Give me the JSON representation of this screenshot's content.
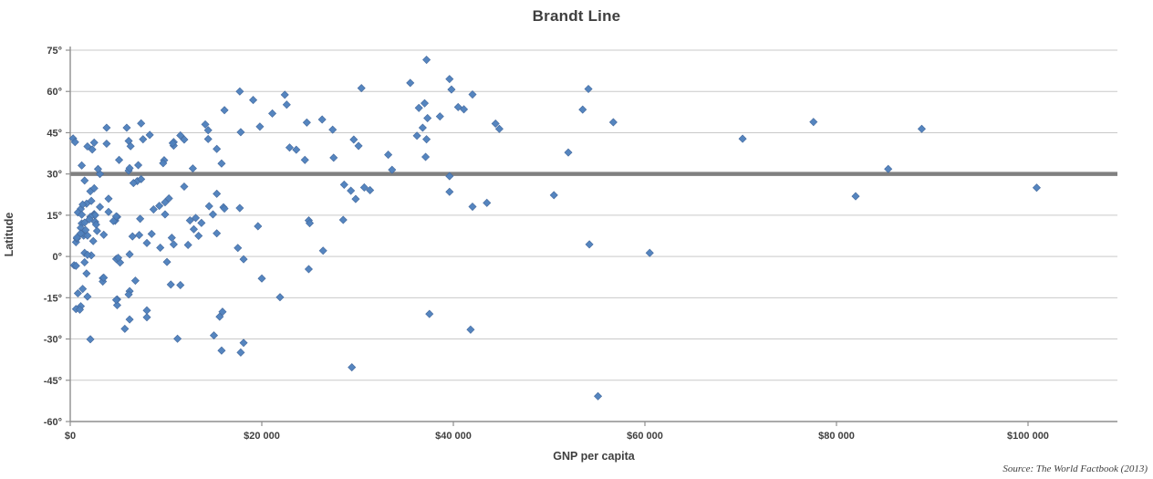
{
  "chart": {
    "title": "Brandt Line",
    "x_axis": {
      "label": "GNP per capita",
      "tick_labels": [
        "$0",
        "$20 000",
        "$40 000",
        "$60 000",
        "$80 000",
        "$100 000"
      ],
      "tick_values": [
        0,
        20000,
        40000,
        60000,
        80000,
        100000
      ]
    },
    "y_axis": {
      "label": "Latitude",
      "tick_labels": [
        "75°",
        "60°",
        "45°",
        "30°",
        "15°",
        "0°",
        "-15°",
        "-30°",
        "-45°",
        "-60°"
      ],
      "tick_values": [
        75,
        60,
        45,
        30,
        15,
        0,
        -15,
        -30,
        -45,
        -60
      ]
    },
    "source_note": "Source: The World Factbook (2013)",
    "colors": {
      "marker": "#4f81bd",
      "marker_edge": "#44699d",
      "brandt_line": "#808080",
      "gridline": "#c9c9c9",
      "axis": "#8e8e8e",
      "text": "#3f3f3f",
      "background": "#ffffff"
    }
  },
  "chart_data": {
    "type": "scatter",
    "title": "Brandt Line",
    "xlabel": "GNP per capita",
    "ylabel": "Latitude",
    "xlim": [
      0,
      109500
    ],
    "ylim": [
      -60,
      75
    ],
    "x_ticks": [
      0,
      20000,
      40000,
      60000,
      80000,
      100000
    ],
    "y_tick_interval": 15,
    "grid": "horizontal-only",
    "legend": "none",
    "marker": "diamond",
    "points_format": "[gnp_per_capita_usd, latitude_deg]",
    "annotations": [
      {
        "type": "hline",
        "y": 30,
        "name": "Brandt Line",
        "color": "#808080",
        "width": 4.5
      }
    ],
    "points": [
      [
        300,
        42.9
      ],
      [
        500,
        41.6
      ],
      [
        1800,
        40.0
      ],
      [
        2500,
        41.4
      ],
      [
        2300,
        38.9
      ],
      [
        3800,
        41.0
      ],
      [
        3800,
        46.8
      ],
      [
        6100,
        42.0
      ],
      [
        6300,
        40.1
      ],
      [
        10800,
        40.3
      ],
      [
        7400,
        48.4
      ],
      [
        16100,
        53.2
      ],
      [
        17700,
        60.0
      ],
      [
        22400,
        58.8
      ],
      [
        19100,
        56.9
      ],
      [
        22600,
        55.2
      ],
      [
        21100,
        52.0
      ],
      [
        26300,
        49.8
      ],
      [
        24700,
        48.7
      ],
      [
        19800,
        47.2
      ],
      [
        27400,
        46.1
      ],
      [
        17800,
        45.2
      ],
      [
        8300,
        44.2
      ],
      [
        11500,
        44.0
      ],
      [
        11900,
        42.5
      ],
      [
        10800,
        41.6
      ],
      [
        10700,
        41.2
      ],
      [
        7600,
        42.6
      ],
      [
        14400,
        45.9
      ],
      [
        14400,
        42.7
      ],
      [
        14100,
        48.0
      ],
      [
        5900,
        46.8
      ],
      [
        23600,
        38.8
      ],
      [
        22900,
        39.6
      ],
      [
        30100,
        40.2
      ],
      [
        29600,
        42.5
      ],
      [
        27500,
        35.9
      ],
      [
        24500,
        35.1
      ],
      [
        15300,
        39.1
      ],
      [
        37200,
        42.6
      ],
      [
        36200,
        43.9
      ],
      [
        70200,
        42.8
      ],
      [
        88900,
        46.4
      ],
      [
        77600,
        48.9
      ],
      [
        37200,
        71.5
      ],
      [
        39600,
        64.5
      ],
      [
        35500,
        63.1
      ],
      [
        30400,
        61.2
      ],
      [
        54100,
        60.9
      ],
      [
        39800,
        60.7
      ],
      [
        42000,
        58.9
      ],
      [
        37000,
        55.7
      ],
      [
        36400,
        54.0
      ],
      [
        41100,
        53.5
      ],
      [
        40500,
        54.3
      ],
      [
        53500,
        53.4
      ],
      [
        56700,
        48.8
      ],
      [
        44800,
        46.4
      ],
      [
        44400,
        48.3
      ],
      [
        36800,
        46.8
      ],
      [
        38600,
        50.9
      ],
      [
        37300,
        50.3
      ],
      [
        9800,
        35.0
      ],
      [
        33200,
        37.0
      ],
      [
        37100,
        36.2
      ],
      [
        39600,
        23.5
      ],
      [
        50500,
        22.3
      ],
      [
        82000,
        21.9
      ],
      [
        54200,
        4.4
      ],
      [
        60500,
        1.3
      ],
      [
        17500,
        3.1
      ],
      [
        5200,
        -2.2
      ],
      [
        4700,
        13.0
      ],
      [
        4000,
        16.2
      ],
      [
        2600,
        12.6
      ],
      [
        3100,
        18.0
      ],
      [
        9900,
        15.3
      ],
      [
        1700,
        19.2
      ],
      [
        2100,
        23.7
      ],
      [
        4000,
        21.0
      ],
      [
        6500,
        7.3
      ],
      [
        9400,
        3.2
      ],
      [
        1500,
        27.6
      ],
      [
        7000,
        27.4
      ],
      [
        3100,
        30.0
      ],
      [
        1200,
        33.1
      ],
      [
        2900,
        31.8
      ],
      [
        12800,
        32.0
      ],
      [
        7100,
        33.2
      ],
      [
        5100,
        35.1
      ],
      [
        6100,
        31.2
      ],
      [
        15800,
        33.8
      ],
      [
        33600,
        31.5
      ],
      [
        31300,
        24.1
      ],
      [
        39600,
        29.2
      ],
      [
        28600,
        26.1
      ],
      [
        100900,
        25.0
      ],
      [
        29300,
        23.9
      ],
      [
        29800,
        20.9
      ],
      [
        2500,
        15.4
      ],
      [
        6600,
        26.7
      ],
      [
        11900,
        25.4
      ],
      [
        9700,
        33.9
      ],
      [
        7400,
        28.1
      ],
      [
        6200,
        32.1
      ],
      [
        2500,
        24.8
      ],
      [
        2200,
        20.2
      ],
      [
        1100,
        17.3
      ],
      [
        800,
        16.0
      ],
      [
        2500,
        15.1
      ],
      [
        2600,
        15.0
      ],
      [
        1200,
        15.2
      ],
      [
        2700,
        11.6
      ],
      [
        1300,
        8.6
      ],
      [
        600,
        5.2
      ],
      [
        1400,
        7.6
      ],
      [
        2100,
        14.4
      ],
      [
        2000,
        13.5
      ],
      [
        1200,
        12.0
      ],
      [
        1100,
        10.4
      ],
      [
        1400,
        8.5
      ],
      [
        700,
        6.5
      ],
      [
        1800,
        7.6
      ],
      [
        1500,
        12.3
      ],
      [
        3500,
        7.9
      ],
      [
        1100,
        8.4
      ],
      [
        1600,
        9.6
      ],
      [
        2800,
        9.3
      ],
      [
        2400,
        5.6
      ],
      [
        700,
        6.9
      ],
      [
        26400,
        2.1
      ],
      [
        18100,
        -1.0
      ],
      [
        2200,
        0.4
      ],
      [
        4800,
        -0.9
      ],
      [
        400,
        -3.2
      ],
      [
        1500,
        1.3
      ],
      [
        1800,
        0.6
      ],
      [
        1500,
        -2.1
      ],
      [
        600,
        -3.4
      ],
      [
        1700,
        -6.2
      ],
      [
        24900,
        -4.6
      ],
      [
        1300,
        -11.8
      ],
      [
        800,
        -13.4
      ],
      [
        1800,
        -14.6
      ],
      [
        6200,
        -12.6
      ],
      [
        1100,
        -18.1
      ],
      [
        600,
        -19.1
      ],
      [
        1000,
        -19.3
      ],
      [
        8000,
        -22.1
      ],
      [
        15600,
        -21.9
      ],
      [
        15900,
        -20.1
      ],
      [
        11200,
        -29.9
      ],
      [
        2100,
        -30.1
      ],
      [
        5700,
        -26.3
      ],
      [
        52000,
        37.8
      ],
      [
        85400,
        31.8
      ],
      [
        15300,
        22.8
      ],
      [
        4900,
        14.4
      ],
      [
        8700,
        17.1
      ],
      [
        4800,
        14.6
      ],
      [
        7300,
        13.7
      ],
      [
        4500,
        12.9
      ],
      [
        12900,
        9.9
      ],
      [
        15300,
        8.4
      ],
      [
        10300,
        21.1
      ],
      [
        9300,
        18.4
      ],
      [
        1300,
        18.9
      ],
      [
        9900,
        19.7
      ],
      [
        16000,
        17.9
      ],
      [
        14500,
        18.3
      ],
      [
        16100,
        17.4
      ],
      [
        17700,
        17.6
      ],
      [
        14900,
        15.3
      ],
      [
        13100,
        14.0
      ],
      [
        12500,
        13.1
      ],
      [
        13700,
        12.2
      ],
      [
        24900,
        13.1
      ],
      [
        25000,
        12.1
      ],
      [
        28500,
        13.3
      ],
      [
        19600,
        11.0
      ],
      [
        42000,
        18.1
      ],
      [
        43500,
        19.5
      ],
      [
        30700,
        25.1
      ],
      [
        13400,
        7.5
      ],
      [
        10800,
        4.4
      ],
      [
        8000,
        4.9
      ],
      [
        12300,
        4.2
      ],
      [
        10100,
        -2.0
      ],
      [
        10500,
        -10.2
      ],
      [
        11500,
        -10.4
      ],
      [
        4900,
        -15.6
      ],
      [
        6200,
        -22.9
      ],
      [
        18100,
        -31.4
      ],
      [
        17800,
        -34.9
      ],
      [
        15800,
        -34.2
      ],
      [
        55100,
        -50.8
      ],
      [
        41800,
        -26.6
      ],
      [
        29400,
        -40.3
      ],
      [
        3400,
        -7.9
      ],
      [
        6800,
        -8.8
      ],
      [
        3400,
        -9.1
      ],
      [
        4900,
        -17.7
      ],
      [
        8000,
        -19.6
      ],
      [
        6100,
        -13.8
      ],
      [
        4800,
        -15.8
      ],
      [
        6200,
        0.8
      ],
      [
        7200,
        7.8
      ],
      [
        8500,
        8.2
      ],
      [
        10600,
        6.8
      ],
      [
        5000,
        -0.5
      ],
      [
        3500,
        -7.7
      ],
      [
        37500,
        -20.9
      ],
      [
        21900,
        -14.8
      ],
      [
        20000,
        -8.0
      ],
      [
        15000,
        -28.7
      ]
    ]
  }
}
